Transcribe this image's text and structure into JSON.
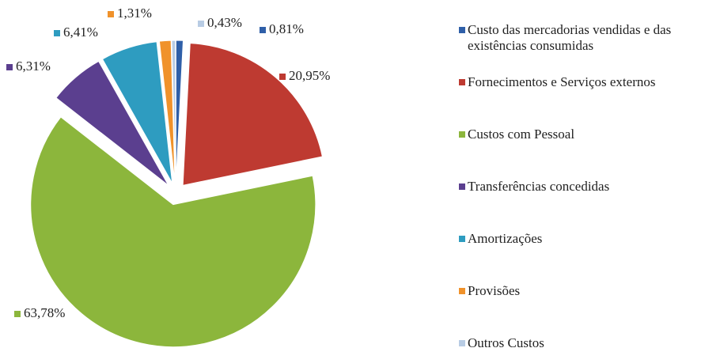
{
  "chart_data": {
    "type": "pie",
    "categories": [
      "Custo das mercadorias vendidas e das existências consumidas",
      "Fornecimentos e Serviços externos",
      "Custos com Pessoal",
      "Transferências concedidas",
      "Amortizações",
      "Provisões",
      "Outros Custos"
    ],
    "values": [
      0.81,
      20.95,
      63.78,
      6.31,
      6.41,
      1.31,
      0.43
    ],
    "value_labels": [
      "0,81%",
      "20,95%",
      "63,78%",
      "6,31%",
      "6,41%",
      "1,31%",
      "0,43%"
    ],
    "colors": [
      "#2f5fa8",
      "#be3a31",
      "#8cb63c",
      "#5b3f8f",
      "#2e9cc0",
      "#f0922b",
      "#b8cce4"
    ],
    "legend": "right"
  }
}
